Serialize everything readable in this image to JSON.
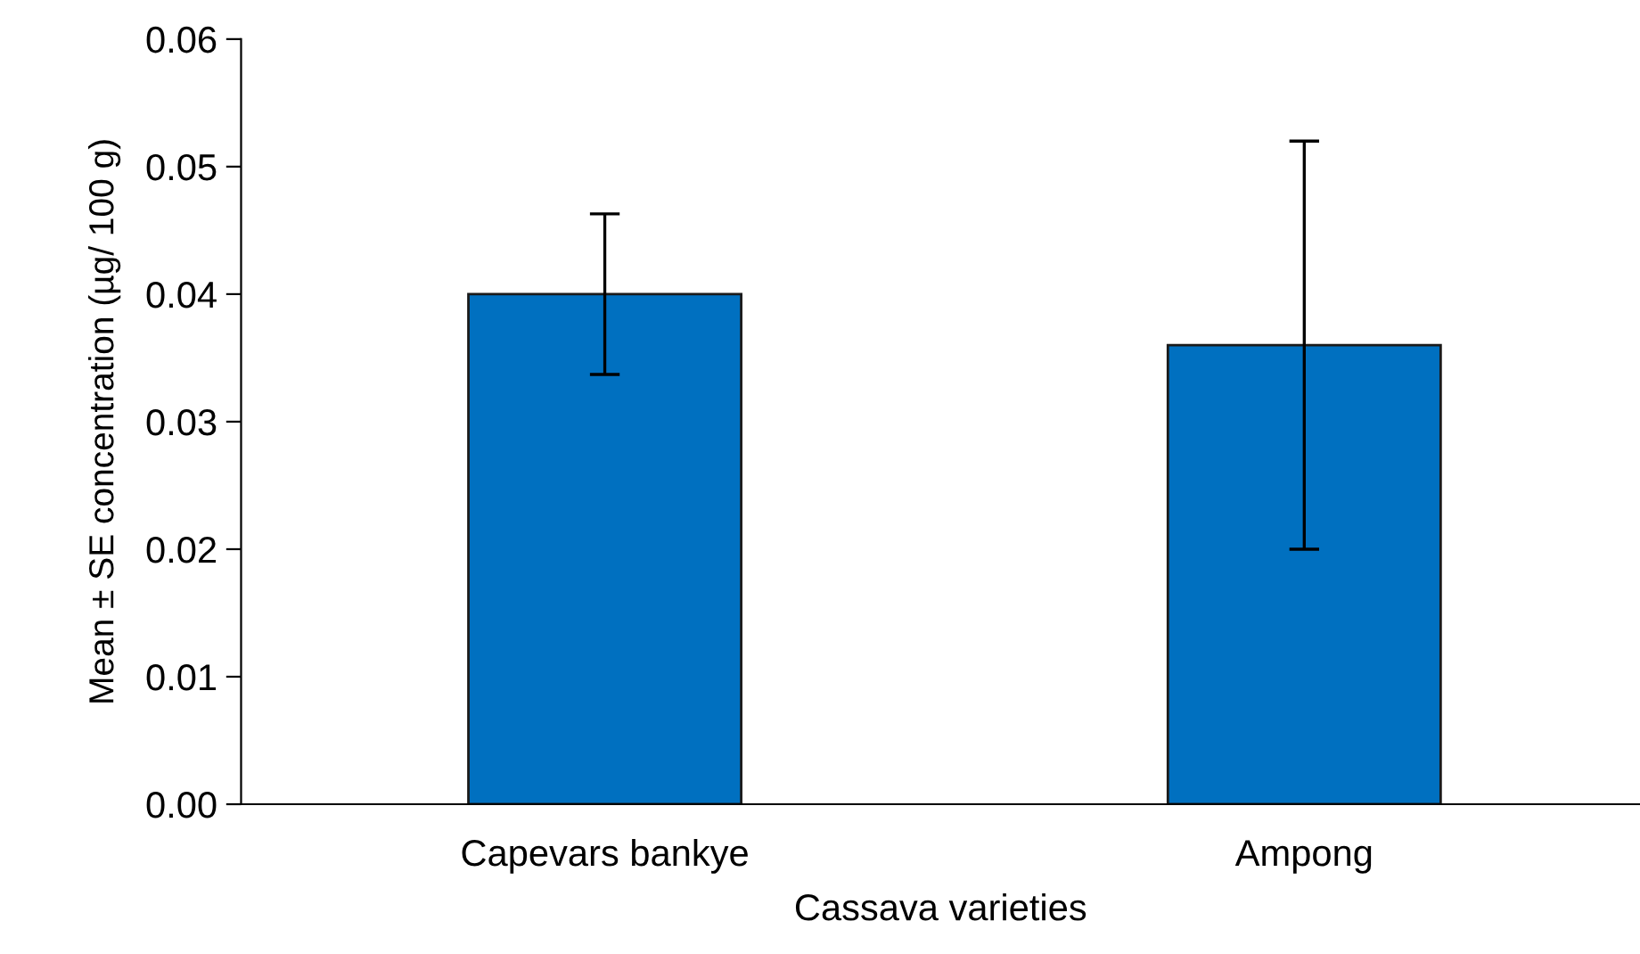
{
  "chart_data": {
    "type": "bar",
    "xlabel": "Cassava varieties",
    "ylabel": "Mean ± SE concentration (µg/ 100 g)",
    "categories": [
      "Capevars bankye",
      "Ampong"
    ],
    "values": [
      0.04,
      0.036
    ],
    "errors": [
      0.0063,
      0.016
    ],
    "color": "#0070c0",
    "ylim": [
      0,
      0.06
    ],
    "yticks": [
      {
        "value": 0,
        "label": "0.00"
      },
      {
        "value": 0.01,
        "label": "0.01"
      },
      {
        "value": 0.02,
        "label": "0.02"
      },
      {
        "value": 0.03,
        "label": "0.03"
      },
      {
        "value": 0.04,
        "label": "0.04"
      },
      {
        "value": 0.05,
        "label": "0.05"
      },
      {
        "value": 0.06,
        "label": "0.06"
      }
    ],
    "grid": false,
    "legend": false
  }
}
